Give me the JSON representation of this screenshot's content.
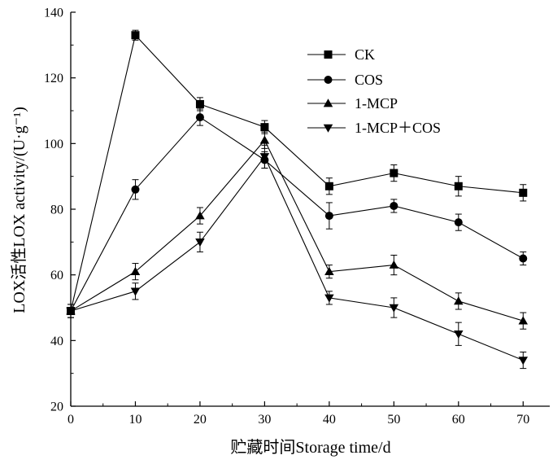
{
  "chart_data": {
    "type": "line",
    "xlabel": "贮藏时间Storage time/d",
    "ylabel": "LOX活性LOX activity/(U·g⁻¹)",
    "x": [
      0,
      10,
      20,
      30,
      40,
      50,
      60,
      70
    ],
    "xlim": [
      0,
      75
    ],
    "ylim": [
      20,
      140
    ],
    "x_ticks": [
      0,
      10,
      20,
      30,
      40,
      50,
      60,
      70
    ],
    "y_ticks": [
      20,
      40,
      60,
      80,
      100,
      120,
      140
    ],
    "grid": false,
    "legend_position": "top-right",
    "series": [
      {
        "name": "CK",
        "marker": "square",
        "values": [
          49,
          133,
          112,
          105,
          87,
          91,
          87,
          85
        ],
        "errors": [
          2,
          1.5,
          2,
          2,
          2.5,
          2.5,
          3,
          2.5
        ]
      },
      {
        "name": "COS",
        "marker": "circle",
        "values": [
          49,
          86,
          108,
          95,
          78,
          81,
          76,
          65
        ],
        "errors": [
          2,
          3,
          2.5,
          2.5,
          4,
          2,
          2.5,
          2
        ]
      },
      {
        "name": "1-MCP",
        "marker": "triangle-up",
        "values": [
          49,
          61,
          78,
          101,
          61,
          63,
          52,
          46
        ],
        "errors": [
          2,
          2.5,
          2.5,
          2.5,
          2,
          3,
          2.5,
          2.5
        ]
      },
      {
        "name": "1-MCP＋COS",
        "marker": "triangle-down",
        "values": [
          49,
          55,
          70,
          96,
          53,
          50,
          42,
          34
        ],
        "errors": [
          2,
          2.5,
          3,
          3.5,
          2,
          3,
          3.5,
          2.5
        ]
      }
    ]
  }
}
